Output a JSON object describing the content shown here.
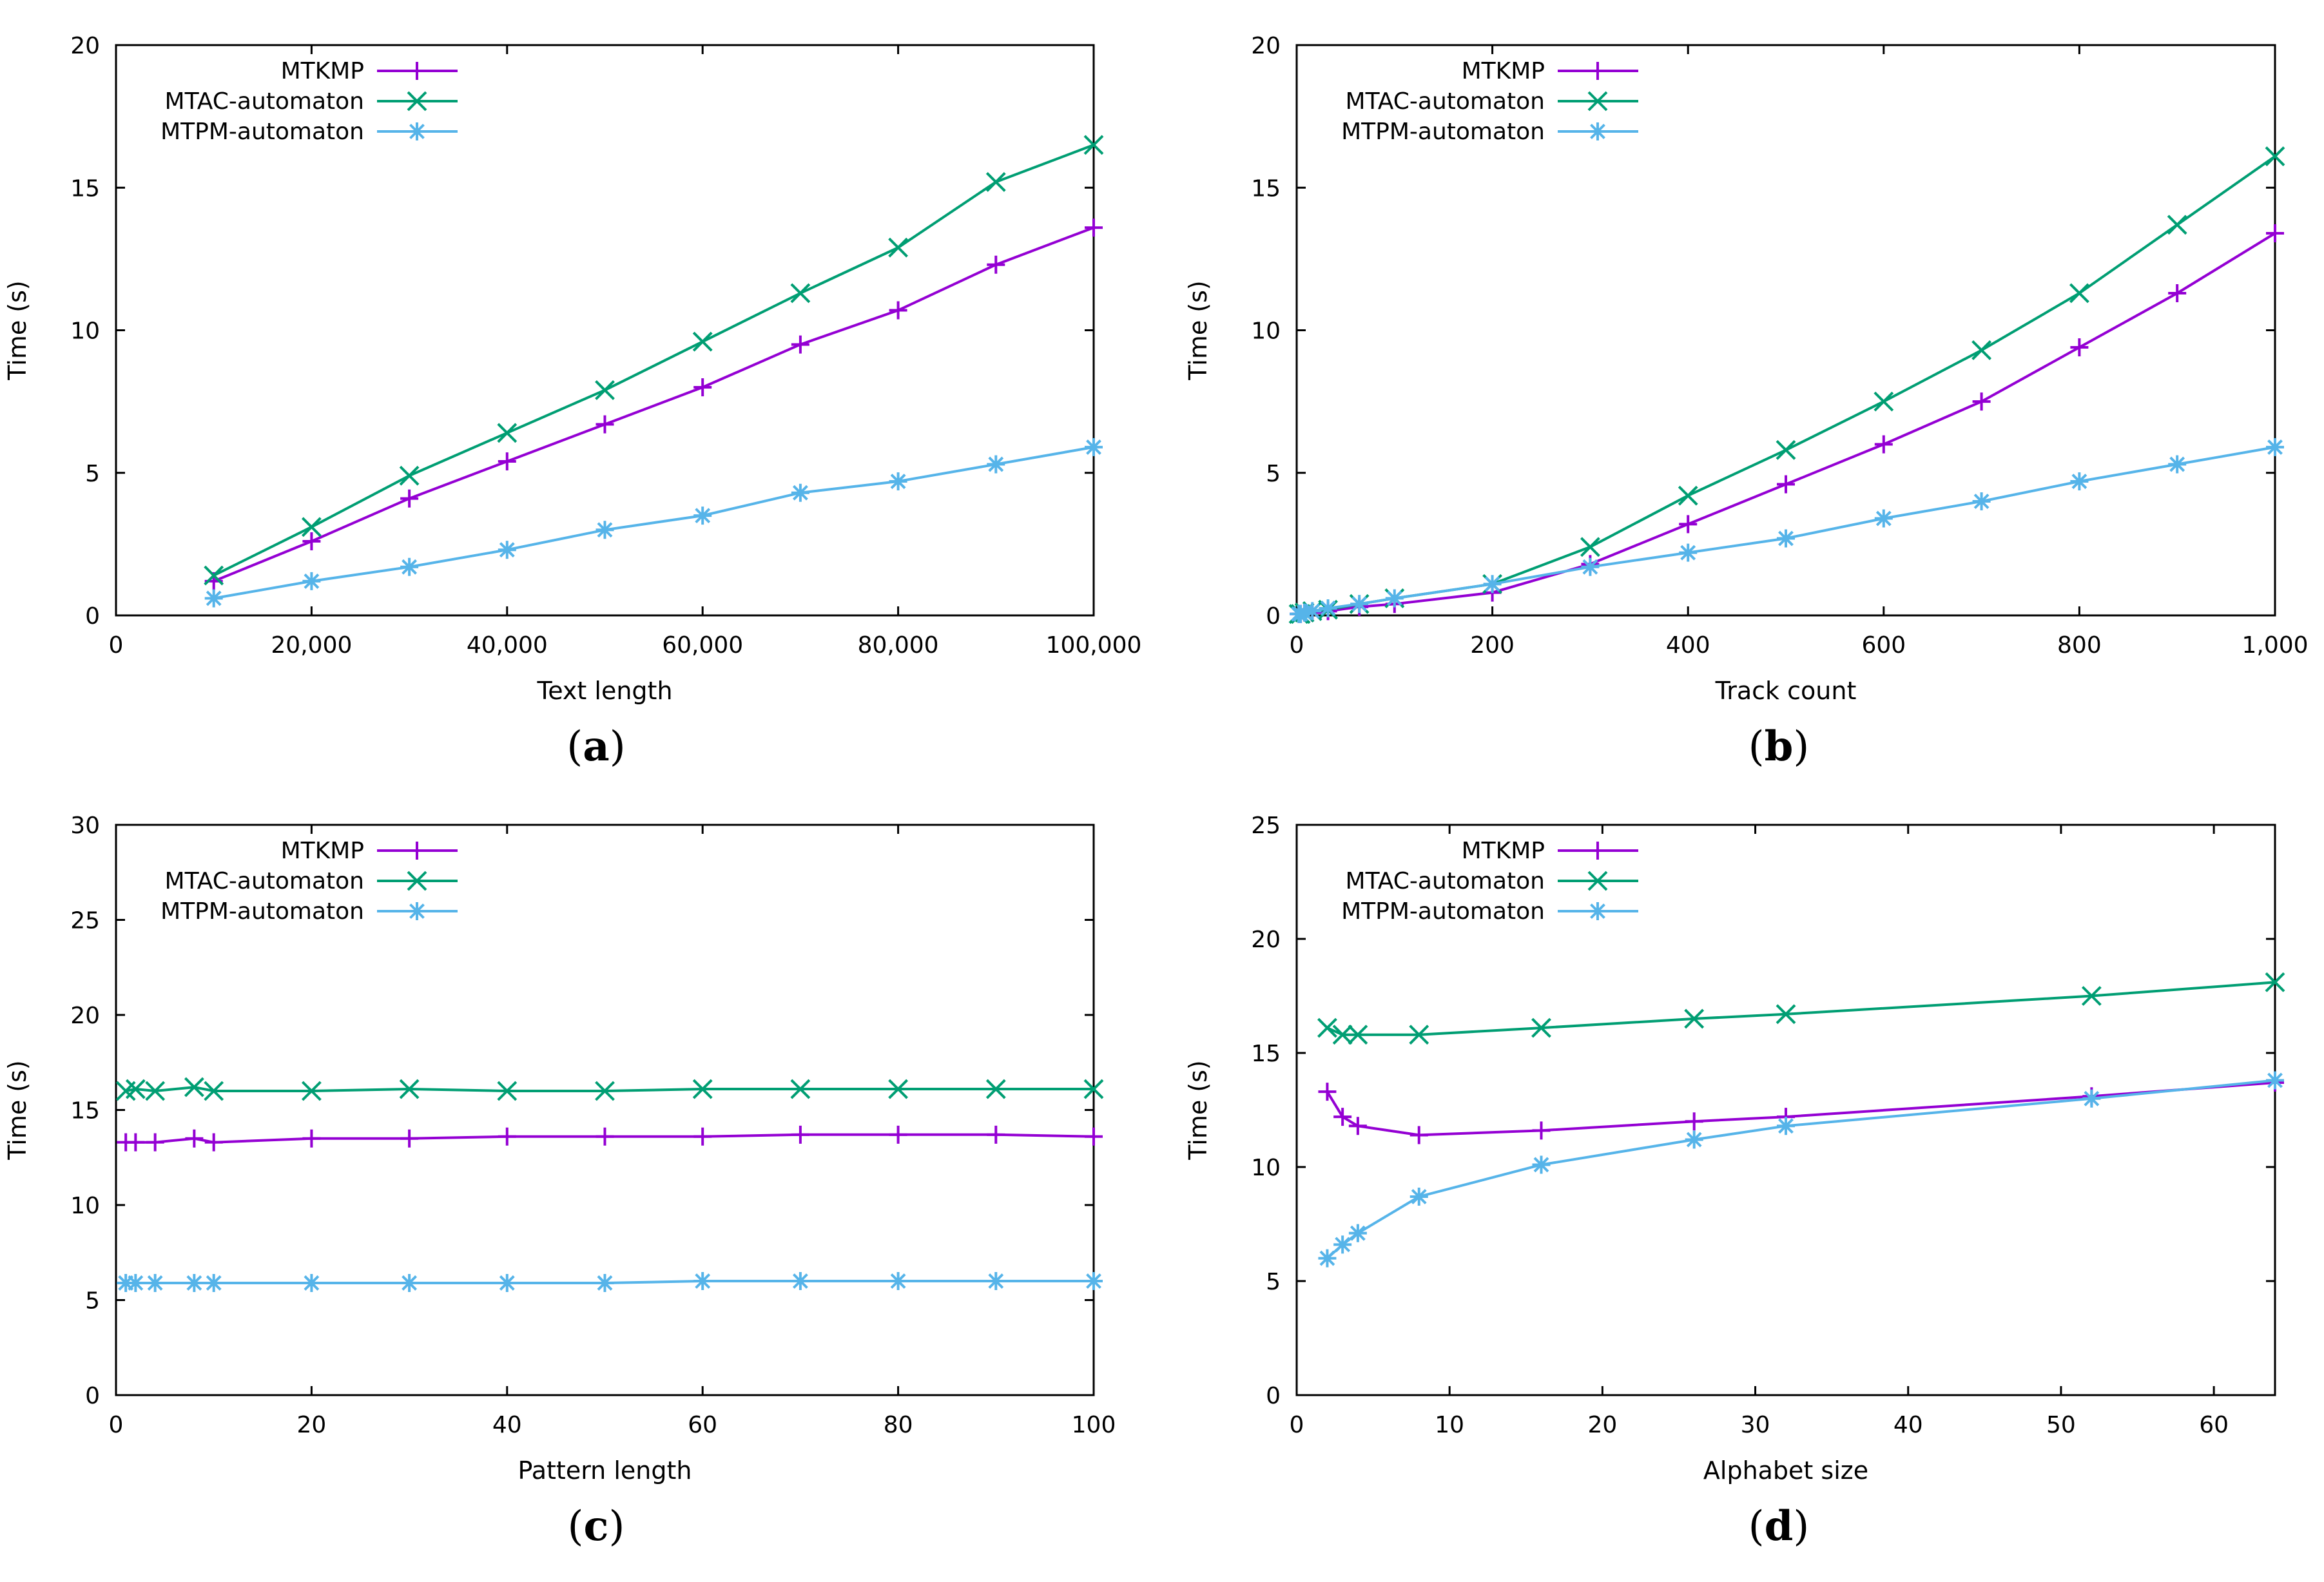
{
  "chart_data": [
    {
      "type": "line",
      "panel_label": "a",
      "xlabel": "Text length",
      "ylabel": "Time (s)",
      "xlim": [
        0,
        100000
      ],
      "ylim": [
        0,
        20
      ],
      "xticks": [
        0,
        20000,
        40000,
        60000,
        80000,
        100000
      ],
      "xtick_labels": [
        "0",
        "20,000",
        "40,000",
        "60,000",
        "80,000",
        "100,000"
      ],
      "yticks": [
        0,
        5,
        10,
        15,
        20
      ],
      "ytick_labels": [
        "0",
        "5",
        "10",
        "15",
        "20"
      ],
      "legend_position": "top-left",
      "series": [
        {
          "name": "MTKMP",
          "color": "#9400d3",
          "marker": "plus",
          "x": [
            10000,
            20000,
            30000,
            40000,
            50000,
            60000,
            70000,
            80000,
            90000,
            100000
          ],
          "y": [
            1.2,
            2.6,
            4.1,
            5.4,
            6.7,
            8.0,
            9.5,
            10.7,
            12.3,
            13.6
          ]
        },
        {
          "name": "MTAC-automaton",
          "color": "#009e73",
          "marker": "cross",
          "x": [
            10000,
            20000,
            30000,
            40000,
            50000,
            60000,
            70000,
            80000,
            90000,
            100000
          ],
          "y": [
            1.4,
            3.1,
            4.9,
            6.4,
            7.9,
            9.6,
            11.3,
            12.9,
            15.2,
            16.5
          ]
        },
        {
          "name": "MTPM-automaton",
          "color": "#56b4e9",
          "marker": "star",
          "x": [
            10000,
            20000,
            30000,
            40000,
            50000,
            60000,
            70000,
            80000,
            90000,
            100000
          ],
          "y": [
            0.6,
            1.2,
            1.7,
            2.3,
            3.0,
            3.5,
            4.3,
            4.7,
            5.3,
            5.9
          ]
        }
      ]
    },
    {
      "type": "line",
      "panel_label": "b",
      "xlabel": "Track count",
      "ylabel": "Time (s)",
      "xlim": [
        0,
        1000
      ],
      "ylim": [
        0,
        20
      ],
      "xticks": [
        0,
        200,
        400,
        600,
        800,
        1000
      ],
      "xtick_labels": [
        "0",
        "200",
        "400",
        "600",
        "800",
        "1,000"
      ],
      "yticks": [
        0,
        5,
        10,
        15,
        20
      ],
      "ytick_labels": [
        "0",
        "5",
        "10",
        "15",
        "20"
      ],
      "legend_position": "top-left",
      "series": [
        {
          "name": "MTKMP",
          "color": "#9400d3",
          "marker": "plus",
          "x": [
            2,
            4,
            8,
            16,
            32,
            64,
            100,
            200,
            300,
            400,
            500,
            600,
            700,
            800,
            900,
            1000
          ],
          "y": [
            0.05,
            0.05,
            0.1,
            0.1,
            0.15,
            0.3,
            0.4,
            0.8,
            1.8,
            3.2,
            4.6,
            6.0,
            7.5,
            9.4,
            11.3,
            13.4
          ]
        },
        {
          "name": "MTAC-automaton",
          "color": "#009e73",
          "marker": "cross",
          "x": [
            2,
            4,
            8,
            16,
            32,
            64,
            100,
            200,
            300,
            400,
            500,
            600,
            700,
            800,
            900,
            1000
          ],
          "y": [
            0.05,
            0.05,
            0.1,
            0.15,
            0.2,
            0.4,
            0.6,
            1.1,
            2.4,
            4.2,
            5.8,
            7.5,
            9.3,
            11.3,
            13.7,
            16.1
          ]
        },
        {
          "name": "MTPM-automaton",
          "color": "#56b4e9",
          "marker": "star",
          "x": [
            2,
            4,
            8,
            16,
            32,
            64,
            100,
            200,
            300,
            400,
            500,
            600,
            700,
            800,
            900,
            1000
          ],
          "y": [
            0.05,
            0.05,
            0.1,
            0.15,
            0.25,
            0.4,
            0.6,
            1.1,
            1.7,
            2.2,
            2.7,
            3.4,
            4.0,
            4.7,
            5.3,
            5.9
          ]
        }
      ]
    },
    {
      "type": "line",
      "panel_label": "c",
      "xlabel": "Pattern length",
      "ylabel": "Time (s)",
      "xlim": [
        0,
        100
      ],
      "ylim": [
        0,
        30
      ],
      "xticks": [
        0,
        20,
        40,
        60,
        80,
        100
      ],
      "xtick_labels": [
        "0",
        "20",
        "40",
        "60",
        "80",
        "100"
      ],
      "yticks": [
        0,
        5,
        10,
        15,
        20,
        25,
        30
      ],
      "ytick_labels": [
        "0",
        "5",
        "10",
        "15",
        "20",
        "25",
        "30"
      ],
      "legend_position": "top-left",
      "series": [
        {
          "name": "MTKMP",
          "color": "#9400d3",
          "marker": "plus",
          "x": [
            1,
            2,
            4,
            8,
            10,
            20,
            30,
            40,
            50,
            60,
            70,
            80,
            90,
            100
          ],
          "y": [
            13.3,
            13.3,
            13.3,
            13.5,
            13.3,
            13.5,
            13.5,
            13.6,
            13.6,
            13.6,
            13.7,
            13.7,
            13.7,
            13.6
          ]
        },
        {
          "name": "MTAC-automaton",
          "color": "#009e73",
          "marker": "cross",
          "x": [
            1,
            2,
            4,
            8,
            10,
            20,
            30,
            40,
            50,
            60,
            70,
            80,
            90,
            100
          ],
          "y": [
            16.0,
            16.1,
            16.0,
            16.2,
            16.0,
            16.0,
            16.1,
            16.0,
            16.0,
            16.1,
            16.1,
            16.1,
            16.1,
            16.1
          ]
        },
        {
          "name": "MTPM-automaton",
          "color": "#56b4e9",
          "marker": "star",
          "x": [
            1,
            2,
            4,
            8,
            10,
            20,
            30,
            40,
            50,
            60,
            70,
            80,
            90,
            100
          ],
          "y": [
            5.9,
            5.9,
            5.9,
            5.9,
            5.9,
            5.9,
            5.9,
            5.9,
            5.9,
            6.0,
            6.0,
            6.0,
            6.0,
            6.0
          ]
        }
      ]
    },
    {
      "type": "line",
      "panel_label": "d",
      "xlabel": "Alphabet size",
      "ylabel": "Time (s)",
      "xlim": [
        0,
        64
      ],
      "ylim": [
        0,
        25
      ],
      "xticks": [
        0,
        10,
        20,
        30,
        40,
        50,
        60
      ],
      "xtick_labels": [
        "0",
        "10",
        "20",
        "30",
        "40",
        "50",
        "60"
      ],
      "yticks": [
        0,
        5,
        10,
        15,
        20,
        25
      ],
      "ytick_labels": [
        "0",
        "5",
        "10",
        "15",
        "20",
        "25"
      ],
      "legend_position": "top-left",
      "series": [
        {
          "name": "MTKMP",
          "color": "#9400d3",
          "marker": "plus",
          "x": [
            2,
            3,
            4,
            8,
            16,
            26,
            32,
            52,
            64
          ],
          "y": [
            13.3,
            12.2,
            11.8,
            11.4,
            11.6,
            12.0,
            12.2,
            13.1,
            13.7
          ]
        },
        {
          "name": "MTAC-automaton",
          "color": "#009e73",
          "marker": "cross",
          "x": [
            2,
            3,
            4,
            8,
            16,
            26,
            32,
            52,
            64
          ],
          "y": [
            16.1,
            15.8,
            15.8,
            15.8,
            16.1,
            16.5,
            16.7,
            17.5,
            18.1
          ]
        },
        {
          "name": "MTPM-automaton",
          "color": "#56b4e9",
          "marker": "star",
          "x": [
            2,
            3,
            4,
            8,
            16,
            26,
            32,
            52,
            64
          ],
          "y": [
            6.0,
            6.6,
            7.1,
            8.7,
            10.1,
            11.2,
            11.8,
            13.0,
            13.8
          ]
        }
      ]
    }
  ]
}
